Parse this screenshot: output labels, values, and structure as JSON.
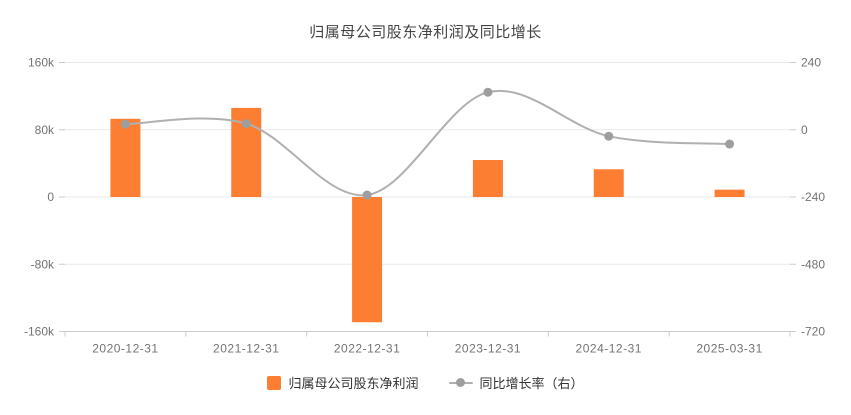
{
  "title": "归属母公司股东净利润及同比增长",
  "chart_data": {
    "type": "bar",
    "subtype": "bar-line-combo",
    "categories": [
      "2020-12-31",
      "2021-12-31",
      "2022-12-31",
      "2023-12-31",
      "2024-12-31",
      "2025-03-31"
    ],
    "series": [
      {
        "name": "归属母公司股东净利润",
        "type": "bar",
        "axis": "left",
        "color": "#fb7e32",
        "values": [
          93000,
          106000,
          -149000,
          44000,
          33000,
          8700
        ]
      },
      {
        "name": "同比增长率（右）",
        "type": "line",
        "axis": "right",
        "color": "#b0b0b0",
        "dot_color": "#9e9e9e",
        "values": [
          20,
          22,
          -233,
          134,
          -23,
          -51
        ]
      }
    ],
    "left_axis": {
      "min": -160000,
      "max": 160000,
      "ticks": [
        "160k",
        "80k",
        "0",
        "-80k",
        "-160k"
      ]
    },
    "right_axis": {
      "min": -720,
      "max": 240,
      "ticks": [
        "240",
        "0",
        "-240",
        "-480",
        "-720"
      ]
    },
    "grid": true,
    "legend_position": "bottom",
    "legend": [
      "归属母公司股东净利润",
      "同比增长率（右）"
    ],
    "colors": {
      "grid_line": "#e9e9e9",
      "axis_line": "#cccccc",
      "axis_label": "#737373",
      "title_text": "#444444",
      "legend_text": "#333333"
    }
  }
}
